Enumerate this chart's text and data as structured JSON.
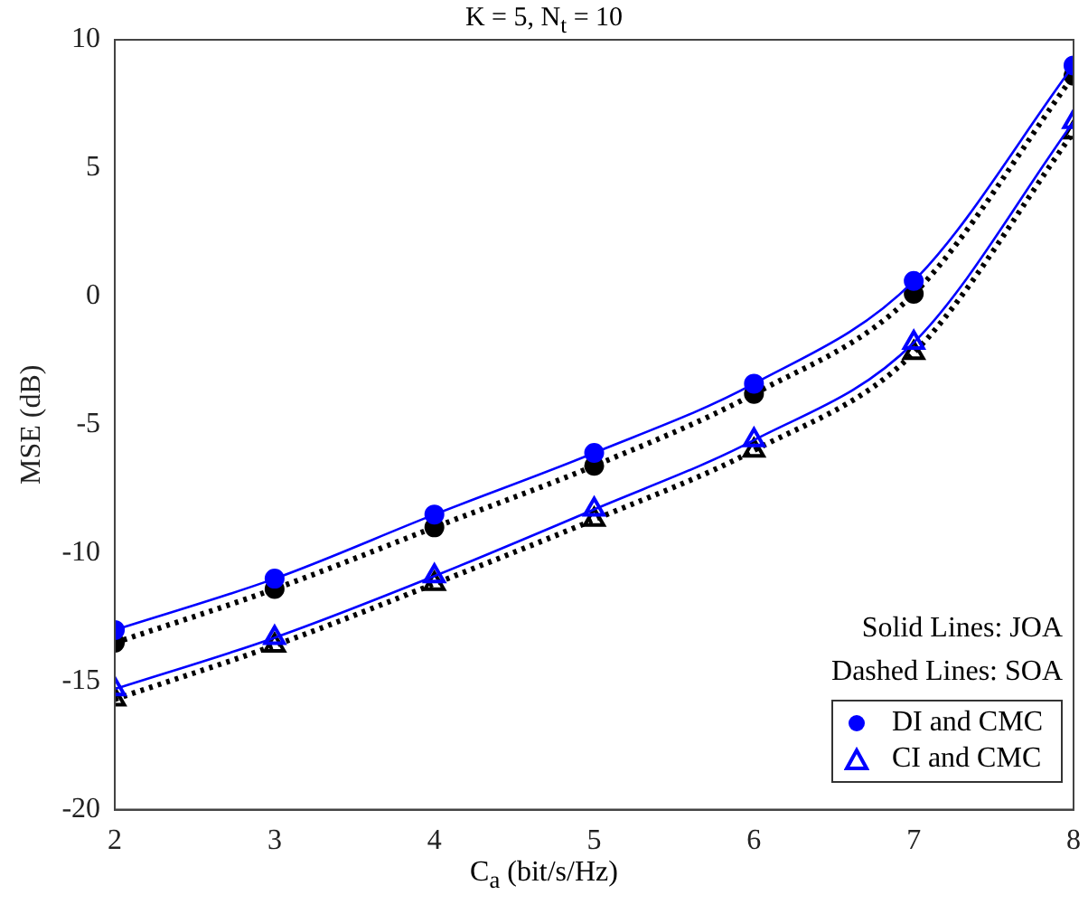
{
  "chart_data": {
    "type": "line",
    "title": "K = 5, N$_{t}$ = 10",
    "xlabel": "C$_{a}$ (bit/s/Hz)",
    "ylabel": "MSE (dB)",
    "x": [
      2,
      3,
      4,
      5,
      6,
      7,
      8
    ],
    "series": [
      {
        "name": "DI and CMC",
        "color": "#0000ff",
        "marker": "circle",
        "line_style": "solid",
        "values": [
          -13.0,
          -11.0,
          -8.5,
          -6.1,
          -3.4,
          0.6,
          9.0
        ]
      },
      {
        "color": "#000000",
        "marker": "circle",
        "line_style": "dotted",
        "values": [
          -13.5,
          -11.4,
          -9.0,
          -6.6,
          -3.8,
          0.1,
          8.6
        ]
      },
      {
        "name": "CI and CMC",
        "color": "#0000ff",
        "marker": "triangle",
        "line_style": "solid",
        "values": [
          -15.3,
          -13.3,
          -10.9,
          -8.3,
          -5.6,
          -1.8,
          6.8
        ]
      },
      {
        "color": "#000000",
        "marker": "triangle",
        "line_style": "dotted",
        "values": [
          -15.7,
          -13.6,
          -11.2,
          -8.7,
          -6.0,
          -2.2,
          6.4
        ]
      }
    ],
    "xlim": [
      2,
      8
    ],
    "xticks": [
      2,
      3,
      4,
      5,
      6,
      7,
      8
    ],
    "ylim": [
      -20,
      10
    ],
    "yticks": [
      -20,
      -15,
      -10,
      -5,
      0,
      5,
      10
    ],
    "grid": false,
    "legend": "bottom right",
    "annotations": [
      "Solid Lines: JOA",
      "Dashed Lines: SOA"
    ]
  }
}
